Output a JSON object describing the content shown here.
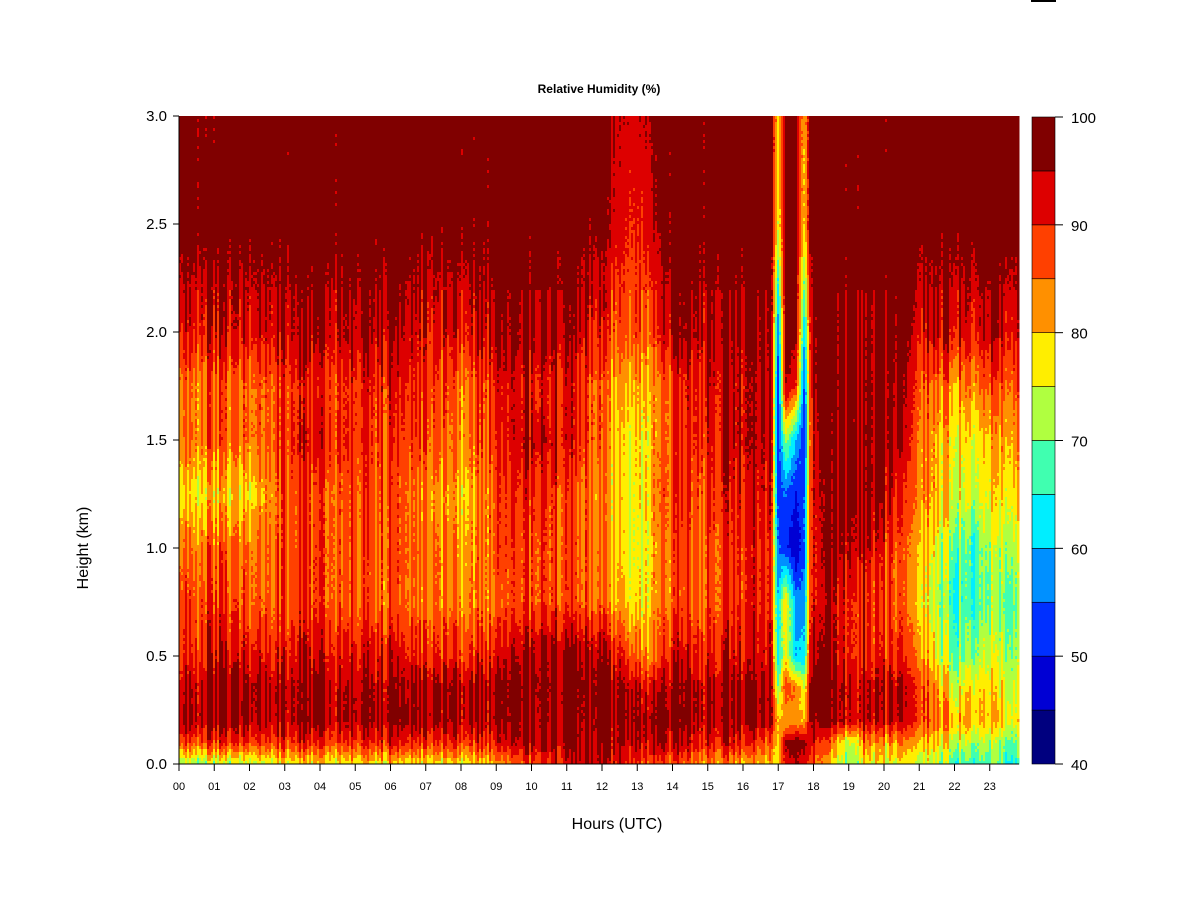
{
  "chart_data": {
    "type": "heatmap",
    "title": "Relative Humidity (%)",
    "xlabel": "Hours (UTC)",
    "ylabel": "Height (km)",
    "xlim": [
      0,
      23.83
    ],
    "ylim": [
      0,
      3.0
    ],
    "x_tick_labels": [
      "00",
      "01",
      "02",
      "03",
      "04",
      "05",
      "06",
      "07",
      "08",
      "09",
      "10",
      "11",
      "12",
      "13",
      "14",
      "15",
      "16",
      "17",
      "18",
      "19",
      "20",
      "21",
      "22",
      "23"
    ],
    "y_ticks": [
      0.0,
      0.5,
      1.0,
      1.5,
      2.0,
      2.5,
      3.0
    ],
    "y_tick_labels": [
      "0.0",
      "0.5",
      "1.0",
      "1.5",
      "2.0",
      "2.5",
      "3.0"
    ],
    "colorbar": {
      "levels": [
        40,
        45,
        50,
        55,
        60,
        65,
        70,
        75,
        80,
        85,
        90,
        95,
        100
      ],
      "colors": [
        "#00007F",
        "#0000D4",
        "#0030FF",
        "#0090FF",
        "#00EEFF",
        "#40FFB0",
        "#B0FF40",
        "#FFEE00",
        "#FF9000",
        "#FF4000",
        "#DD0000",
        "#800000"
      ],
      "tick_values": [
        100,
        90,
        80,
        70,
        60,
        50,
        40
      ],
      "tick_labels": [
        "100",
        "90",
        "80",
        "70",
        "60",
        "50",
        "40"
      ]
    },
    "x_hours": [
      0,
      0.5,
      1,
      2,
      3,
      4,
      5,
      6,
      7,
      8,
      9,
      10,
      11,
      12,
      12.5,
      13,
      13.5,
      14,
      15,
      16,
      16.8,
      17.0,
      17.2,
      17.5,
      17.75,
      17.9,
      18.1,
      18.5,
      19,
      19.5,
      20,
      20.5,
      21,
      21.5,
      22,
      22.5,
      23,
      23.8
    ],
    "y_heights_km": [
      0,
      0.1,
      0.2,
      0.35,
      0.5,
      0.75,
      1.0,
      1.25,
      1.5,
      1.75,
      2.0,
      2.5,
      3.0
    ],
    "z_rh_percent": [
      [
        72,
        72,
        72,
        74,
        78,
        78,
        78,
        78,
        78,
        78,
        82,
        88,
        92,
        94,
        93,
        90,
        88,
        86,
        84,
        82,
        80,
        78,
        92,
        95,
        92,
        88,
        85,
        78,
        72,
        78,
        76,
        75,
        74,
        72,
        68,
        68,
        68,
        66
      ],
      [
        88,
        88,
        88,
        89,
        90,
        90,
        90,
        90,
        90,
        90,
        92,
        96,
        96,
        96,
        96,
        96,
        95,
        94,
        93,
        92,
        85,
        78,
        96,
        98,
        96,
        92,
        90,
        85,
        75,
        85,
        82,
        82,
        82,
        78,
        75,
        74,
        72,
        70
      ],
      [
        96,
        96,
        96,
        96,
        96,
        96,
        96,
        96,
        96,
        96,
        96,
        97,
        97,
        97,
        97,
        97,
        97,
        97,
        96,
        96,
        95,
        80,
        80,
        82,
        80,
        96,
        97,
        96,
        95,
        95,
        94,
        92,
        90,
        84,
        82,
        82,
        80,
        78
      ],
      [
        93,
        95,
        96,
        96,
        96,
        96,
        95,
        95,
        96,
        96,
        97,
        98,
        98,
        98,
        97,
        95,
        94,
        96,
        96,
        96,
        95,
        70,
        88,
        85,
        75,
        96,
        98,
        97,
        96,
        95,
        95,
        93,
        90,
        82,
        75,
        80,
        78,
        75
      ],
      [
        90,
        90,
        92,
        92,
        92,
        93,
        92,
        92,
        90,
        90,
        92,
        96,
        97,
        95,
        92,
        86,
        85,
        92,
        92,
        93,
        92,
        62,
        78,
        60,
        62,
        92,
        96,
        94,
        92,
        92,
        90,
        88,
        85,
        76,
        70,
        72,
        74,
        72
      ],
      [
        88,
        88,
        88,
        86,
        88,
        88,
        87,
        85,
        85,
        84,
        86,
        88,
        88,
        84,
        82,
        78,
        82,
        86,
        88,
        90,
        90,
        60,
        80,
        58,
        57,
        88,
        92,
        93,
        92,
        90,
        88,
        85,
        80,
        72,
        66,
        68,
        70,
        70
      ],
      [
        85,
        85,
        85,
        85,
        88,
        88,
        87,
        86,
        86,
        82,
        88,
        88,
        88,
        84,
        80,
        76,
        82,
        86,
        88,
        90,
        90,
        55,
        52,
        45,
        55,
        88,
        92,
        96,
        97,
        95,
        90,
        85,
        82,
        75,
        70,
        68,
        72,
        75
      ],
      [
        78,
        78,
        78,
        78,
        88,
        87,
        88,
        86,
        84,
        80,
        88,
        90,
        88,
        82,
        80,
        77,
        83,
        88,
        90,
        92,
        92,
        52,
        55,
        50,
        55,
        88,
        93,
        96,
        98,
        98,
        96,
        88,
        85,
        80,
        76,
        76,
        77,
        80
      ],
      [
        85,
        85,
        85,
        85,
        90,
        92,
        90,
        88,
        88,
        84,
        90,
        95,
        92,
        85,
        80,
        78,
        82,
        88,
        92,
        95,
        93,
        50,
        72,
        60,
        50,
        85,
        95,
        97,
        98,
        98,
        98,
        93,
        86,
        80,
        78,
        78,
        80,
        84
      ],
      [
        85,
        85,
        85,
        85,
        90,
        90,
        90,
        90,
        90,
        85,
        92,
        92,
        92,
        85,
        82,
        82,
        82,
        88,
        94,
        94,
        94,
        50,
        96,
        90,
        52,
        88,
        98,
        98,
        98,
        98,
        97,
        95,
        88,
        85,
        83,
        85,
        86,
        88
      ],
      [
        92,
        92,
        92,
        92,
        95,
        95,
        95,
        95,
        92,
        92,
        96,
        96,
        96,
        90,
        88,
        88,
        88,
        96,
        96,
        96,
        96,
        55,
        97,
        97,
        60,
        90,
        98,
        98,
        98,
        98,
        98,
        97,
        93,
        93,
        93,
        93,
        94,
        93
      ],
      [
        98,
        98,
        98,
        98,
        98,
        98,
        98,
        98,
        98,
        98,
        98,
        98,
        98,
        97,
        92,
        90,
        95,
        98,
        98,
        98,
        98,
        75,
        97,
        97,
        78,
        97,
        98,
        98,
        98,
        98,
        98,
        98,
        98,
        98,
        98,
        98,
        98,
        98
      ],
      [
        97,
        97,
        97,
        98,
        98,
        98,
        98,
        98,
        98,
        98,
        98,
        98,
        98,
        98,
        95,
        94,
        97,
        98,
        98,
        98,
        98,
        78,
        97,
        97,
        80,
        97,
        98,
        98,
        98,
        98,
        98,
        98,
        98,
        98,
        98,
        98,
        98,
        98
      ]
    ]
  }
}
